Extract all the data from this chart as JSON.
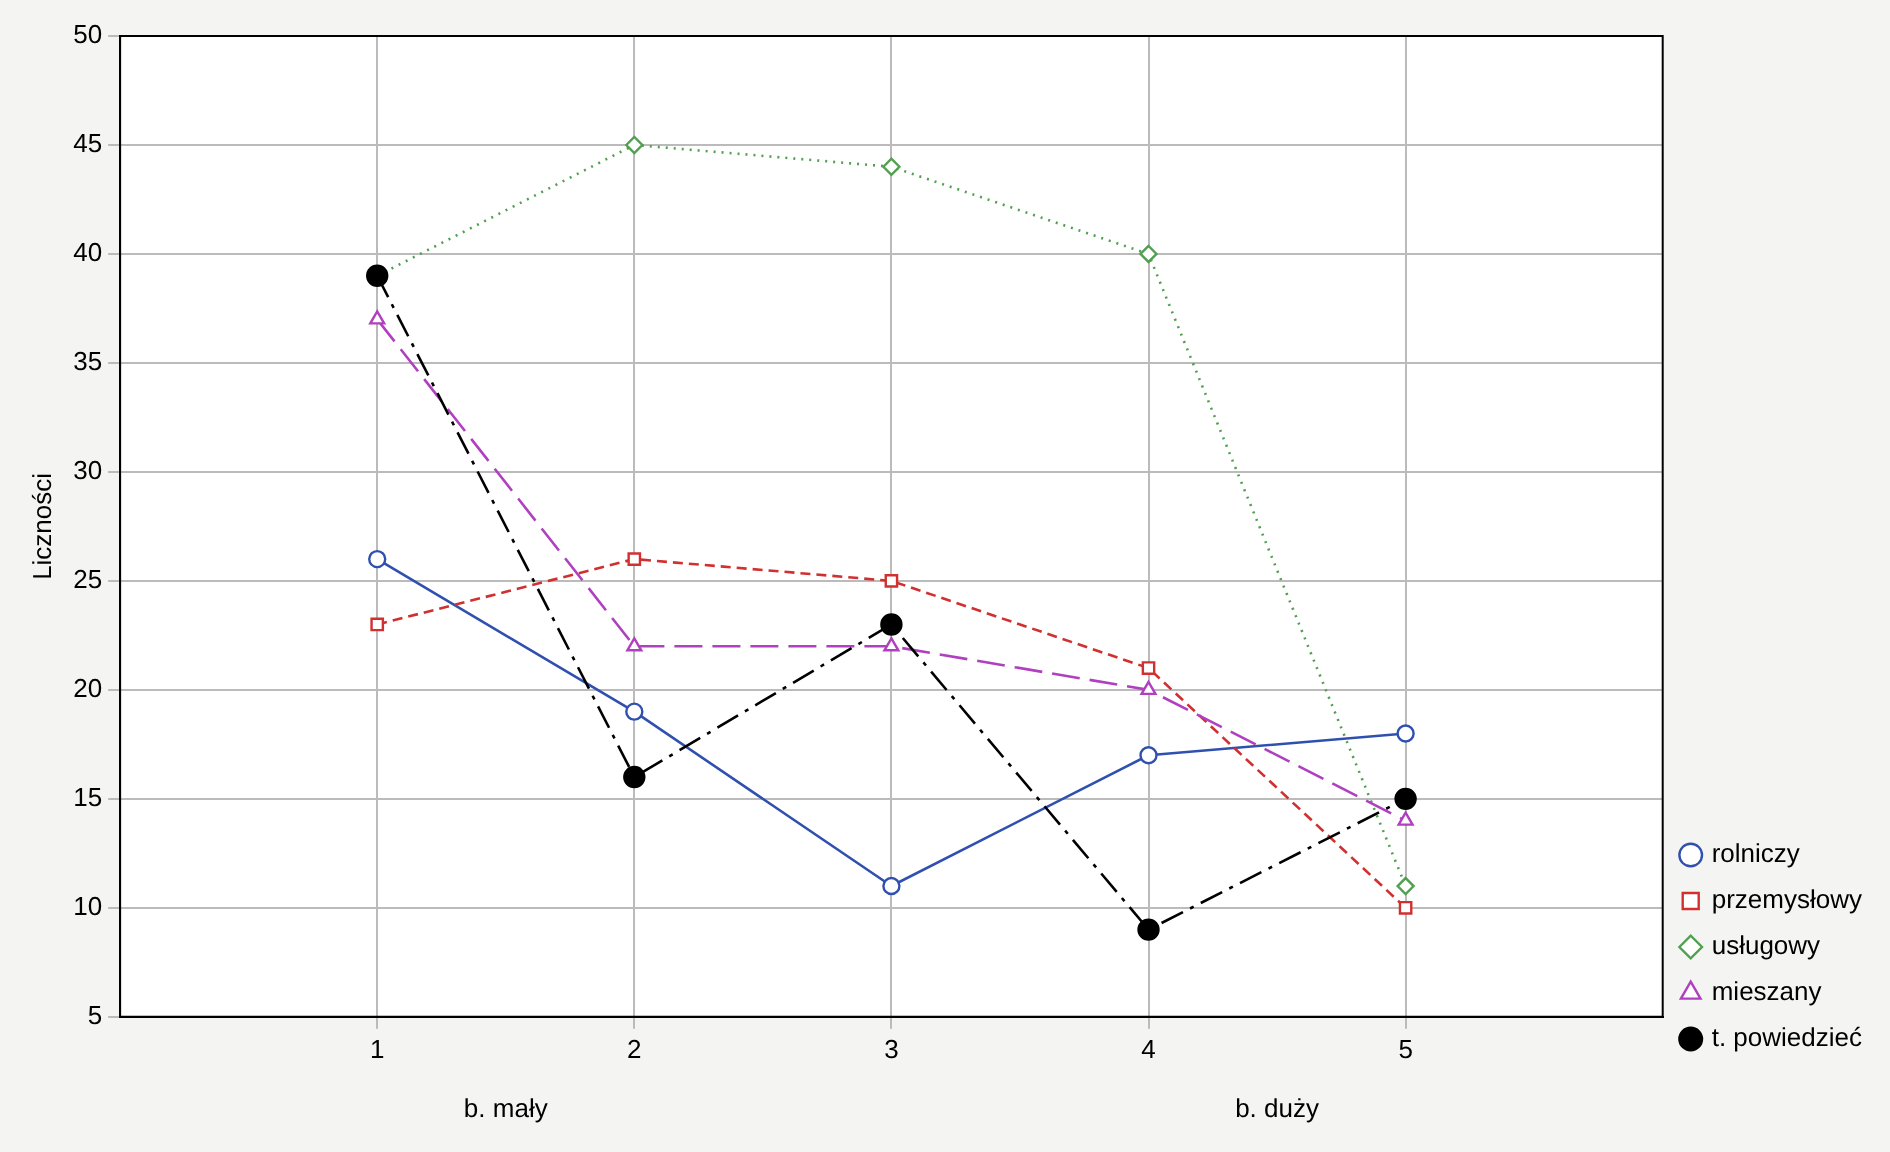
{
  "chart_data": {
    "type": "line",
    "ylabel": "Liczności",
    "x": [
      1,
      2,
      3,
      4,
      5
    ],
    "xlim": [
      0,
      6
    ],
    "xticks": [
      1,
      2,
      3,
      4,
      5
    ],
    "ylim": [
      5,
      50
    ],
    "yticks": [
      5,
      10,
      15,
      20,
      25,
      30,
      35,
      40,
      45,
      50
    ],
    "grid": true,
    "legend": "bottom right",
    "annotations": [
      "b. mały",
      "b. duży"
    ],
    "series": [
      {
        "name": "rolniczy",
        "color": "#3050b0",
        "values": [
          26,
          19,
          11,
          17,
          18
        ],
        "marker": "circle",
        "line_style": "solid"
      },
      {
        "name": "przemysłowy",
        "color": "#d03030",
        "values": [
          23,
          26,
          25,
          21,
          10
        ],
        "marker": "square",
        "line_style": "dashed"
      },
      {
        "name": "usługowy",
        "color": "#50a050",
        "values": [
          39,
          45,
          44,
          40,
          11
        ],
        "marker": "diamond",
        "line_style": "dotted"
      },
      {
        "name": "mieszany",
        "color": "#b040c0",
        "values": [
          37,
          22,
          22,
          20,
          14
        ],
        "marker": "triangle",
        "line_style": "longdash"
      },
      {
        "name": "t. powiedzieć",
        "color": "#000000",
        "values": [
          39,
          16,
          23,
          9,
          15
        ],
        "marker": "filled-circle",
        "line_style": "dashdot"
      }
    ]
  }
}
